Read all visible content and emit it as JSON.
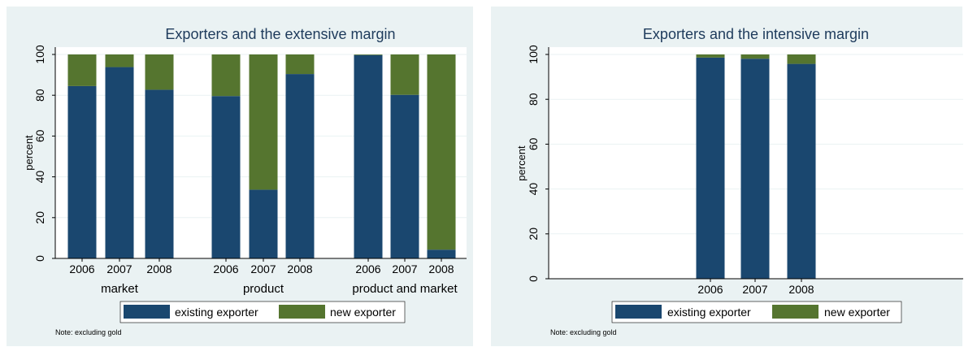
{
  "colors": {
    "existing": "#1a476f",
    "new": "#55752f",
    "panel_bg": "#eaf2f3",
    "plot_bg": "#ffffff",
    "grid": "#eaf2f3"
  },
  "chart_data": [
    {
      "type": "bar",
      "stacked": true,
      "title": "Exporters and the extensive margin",
      "ylabel": "percent",
      "ylim": [
        0,
        100
      ],
      "yticks": [
        "0",
        "20",
        "40",
        "60",
        "80",
        "100"
      ],
      "groups": [
        {
          "label": "market",
          "categories": [
            "2006",
            "2007",
            "2008"
          ],
          "existing": [
            84.5,
            93.8,
            82.7
          ],
          "new": [
            15.5,
            6.2,
            17.3
          ]
        },
        {
          "label": "product",
          "categories": [
            "2006",
            "2007",
            "2008"
          ],
          "existing": [
            79.6,
            33.7,
            90.4
          ],
          "new": [
            20.4,
            66.3,
            9.6
          ]
        },
        {
          "label": "product and market",
          "categories": [
            "2006",
            "2007",
            "2008"
          ],
          "existing": [
            99.7,
            80.2,
            4.3
          ],
          "new": [
            0.3,
            19.8,
            95.7
          ]
        }
      ],
      "legend": [
        "existing exporter",
        "new exporter"
      ],
      "legend_position": "bottom",
      "note": "Note: excluding gold"
    },
    {
      "type": "bar",
      "stacked": true,
      "title": "Exporters and the intensive margin",
      "ylabel": "percent",
      "ylim": [
        0,
        100
      ],
      "yticks": [
        "0",
        "20",
        "40",
        "60",
        "80",
        "100"
      ],
      "groups": [
        {
          "label": "",
          "categories": [
            "2006",
            "2007",
            "2008"
          ],
          "existing": [
            98.6,
            98.1,
            95.8
          ],
          "new": [
            1.4,
            1.9,
            4.2
          ]
        }
      ],
      "legend": [
        "existing exporter",
        "new exporter"
      ],
      "legend_position": "bottom",
      "note": "Note: excluding gold"
    }
  ]
}
